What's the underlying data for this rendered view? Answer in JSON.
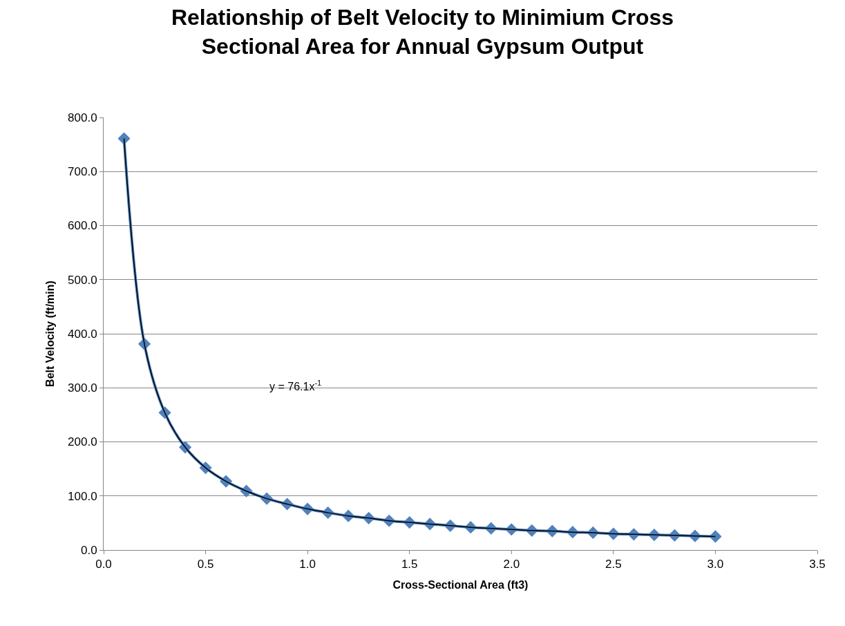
{
  "chart_data": {
    "type": "line",
    "title": "Relationship of Belt Velocity to Minimium Cross Sectional Area for Annual Gypsum Output",
    "xlabel": "Cross-Sectional Area (ft3)",
    "ylabel": "Belt Velocity (ft/min)",
    "x": [
      0.1,
      0.2,
      0.3,
      0.4,
      0.5,
      0.6,
      0.7,
      0.8,
      0.9,
      1.0,
      1.1,
      1.2,
      1.3,
      1.4,
      1.5,
      1.6,
      1.7,
      1.8,
      1.9,
      2.0,
      2.1,
      2.2,
      2.3,
      2.4,
      2.5,
      2.6,
      2.7,
      2.8,
      2.9,
      3.0
    ],
    "series": [
      {
        "color": "#4f81bd",
        "marker": "diamond",
        "values": [
          761,
          381,
          254,
          190,
          152,
          127,
          109,
          95,
          85,
          76,
          69,
          63,
          59,
          54,
          51,
          48,
          45,
          42,
          40,
          38,
          36,
          35,
          33,
          32,
          30,
          29,
          28,
          27,
          26,
          25
        ]
      },
      {
        "color": "#000000",
        "marker": "none",
        "values": [
          761,
          381,
          254,
          190,
          152,
          127,
          109,
          95,
          85,
          76,
          69,
          63,
          59,
          54,
          51,
          48,
          45,
          42,
          40,
          38,
          36,
          35,
          33,
          32,
          30,
          29,
          28,
          27,
          26,
          25
        ]
      }
    ],
    "annotations": [
      "y = 76.1x$^{-1}$"
    ],
    "xlim": [
      0,
      3.5
    ],
    "xticks": [
      {
        "value": 0,
        "label": "0.0"
      },
      {
        "value": 0.5,
        "label": "0.5"
      },
      {
        "value": 1,
        "label": "1.0"
      },
      {
        "value": 1.5,
        "label": "1.5"
      },
      {
        "value": 2,
        "label": "2.0"
      },
      {
        "value": 2.5,
        "label": "2.5"
      },
      {
        "value": 3,
        "label": "3.0"
      },
      {
        "value": 3.5,
        "label": "3.5"
      }
    ],
    "ylim": [
      0,
      800
    ],
    "yticks": [
      {
        "value": 0,
        "label": "0.0"
      },
      {
        "value": 100,
        "label": "100.0"
      },
      {
        "value": 200,
        "label": "200.0"
      },
      {
        "value": 300,
        "label": "300.0"
      },
      {
        "value": 400,
        "label": "400.0"
      },
      {
        "value": 500,
        "label": "500.0"
      },
      {
        "value": 600,
        "label": "600.0"
      },
      {
        "value": 700,
        "label": "700.0"
      },
      {
        "value": 800,
        "label": "800.0"
      }
    ],
    "grid": "y"
  }
}
